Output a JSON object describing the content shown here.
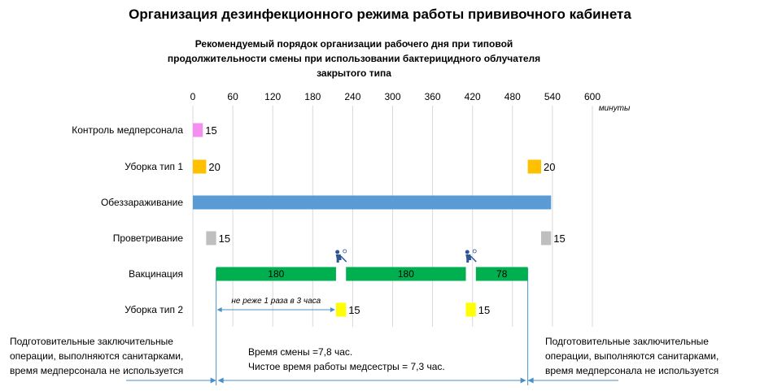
{
  "page_title": "Организация дезинфекционного режима работы прививочного кабинета",
  "chart_title_lines": [
    "Рекомендуемый порядок организации рабочего дня при типовой",
    "продолжительности смены при использовании бактерицидного облучателя",
    "закрытого типа"
  ],
  "left_note_lines": [
    "Подготовительные заключительные",
    "операции, выполняются санитарками,",
    "время медперсонала не используется"
  ],
  "right_note_lines": [
    "Подготовительные заключительные",
    "операции, выполняются санитарками,",
    "время медперсонала не используется"
  ],
  "info_lines": [
    "Время смены =7,8 час.",
    "Чистое время работы медсестры = 7,3 час."
  ],
  "chart_data": {
    "type": "bar",
    "orientation": "horizontal",
    "xlabel": "минуты",
    "xlim": [
      0,
      600
    ],
    "xticks": [
      0,
      60,
      120,
      180,
      240,
      300,
      360,
      420,
      480,
      540,
      600
    ],
    "grid": true,
    "categories": [
      "Контроль медперсонала",
      "Уборка тип 1",
      "Обеззараживание",
      "Проветривание",
      "Вакцинация",
      "Уборка тип 2"
    ],
    "tasks": [
      {
        "category": "Контроль медперсонала",
        "start": 0,
        "duration": 15,
        "label": "15",
        "label_pos": "right",
        "color": "#f48ff0"
      },
      {
        "category": "Уборка тип 1",
        "start": 0,
        "duration": 20,
        "label": "20",
        "label_pos": "right",
        "color": "#ffc000"
      },
      {
        "category": "Уборка тип 1",
        "start": 503,
        "duration": 20,
        "label": "20",
        "label_pos": "right",
        "color": "#ffc000"
      },
      {
        "category": "Обеззараживание",
        "start": 0,
        "duration": 538,
        "label": "",
        "label_pos": "",
        "color": "#5b9bd5"
      },
      {
        "category": "Проветривание",
        "start": 20,
        "duration": 15,
        "label": "15",
        "label_pos": "right",
        "color": "#bfbfbf"
      },
      {
        "category": "Проветривание",
        "start": 523,
        "duration": 15,
        "label": "15",
        "label_pos": "right",
        "color": "#bfbfbf"
      },
      {
        "category": "Вакцинация",
        "start": 35,
        "duration": 180,
        "label": "180",
        "label_pos": "inside",
        "color": "#00b050"
      },
      {
        "category": "Вакцинация",
        "start": 230,
        "duration": 180,
        "label": "180",
        "label_pos": "inside",
        "color": "#00b050"
      },
      {
        "category": "Вакцинация",
        "start": 425,
        "duration": 78,
        "label": "78",
        "label_pos": "inside",
        "color": "#00b050"
      },
      {
        "category": "Уборка тип 2",
        "start": 215,
        "duration": 15,
        "label": "15",
        "label_pos": "right",
        "color": "#ffff00"
      },
      {
        "category": "Уборка тип 2",
        "start": 410,
        "duration": 15,
        "label": "15",
        "label_pos": "right",
        "color": "#ffff00"
      }
    ],
    "vaccination_break_icons": [
      {
        "at": 222,
        "icon": "cleaning-person-icon"
      },
      {
        "at": 417,
        "icon": "cleaning-person-icon"
      }
    ],
    "annotations": [
      {
        "text": "не реже 1 раза в 3 часа",
        "from": 35,
        "to": 215,
        "category": "Уборка тип 2"
      }
    ],
    "shift_markers": [
      35,
      503
    ],
    "accent_line_color": "#4a90c8"
  }
}
